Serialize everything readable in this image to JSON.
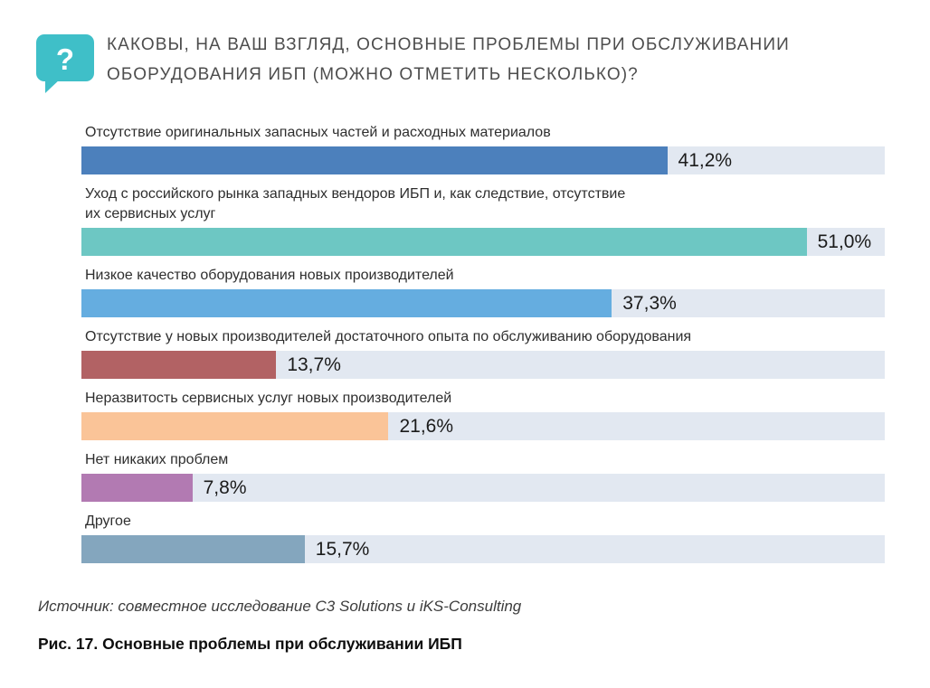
{
  "icon": {
    "name": "question-bubble",
    "glyph": "?",
    "color": "#3fbfc8"
  },
  "title": {
    "line1": "КАКОВЫ, НА ВАШ ВЗГЛЯД, ОСНОВНЫЕ ПРОБЛЕМЫ ПРИ ОБСЛУЖИВАНИИ",
    "line2": "ОБОРУДОВАНИЯ ИБП (МОЖНО ОТМЕТИТЬ НЕСКОЛЬКО)?"
  },
  "chart_data": {
    "type": "bar",
    "orientation": "horizontal",
    "title": "КАКОВЫ, НА ВАШ ВЗГЛЯД, ОСНОВНЫЕ ПРОБЛЕМЫ ПРИ ОБСЛУЖИВАНИИ ОБОРУДОВАНИЯ ИБП (МОЖНО ОТМЕТИТЬ НЕСКОЛЬКО)?",
    "categories": [
      "Отсутствие оригинальных запасных частей и расходных материалов",
      "Уход с российского рынка западных вендоров ИБП и, как следствие, отсутствие их сервисных услуг",
      "Низкое качество оборудования новых производителей",
      "Отсутствие у новых производителей достаточного опыта по обслуживанию оборудования",
      "Неразвитость сервисных услуг новых производителей",
      "Нет никаких проблем",
      "Другое"
    ],
    "category_lines": [
      [
        "Отсутствие оригинальных запасных частей и расходных материалов"
      ],
      [
        "Уход с российского рынка западных вендоров ИБП и, как следствие, отсутствие",
        "их сервисных услуг"
      ],
      [
        "Низкое качество оборудования новых производителей"
      ],
      [
        "Отсутствие у новых производителей достаточного опыта по обслуживанию оборудования"
      ],
      [
        "Неразвитость сервисных услуг новых производителей"
      ],
      [
        "Нет никаких проблем"
      ],
      [
        "Другое"
      ]
    ],
    "values": [
      41.2,
      51.0,
      37.3,
      13.7,
      21.6,
      7.8,
      15.7
    ],
    "value_labels": [
      "41,2%",
      "51,0%",
      "37,3%",
      "13,7%",
      "21,6%",
      "7,8%",
      "15,7%"
    ],
    "bar_colors": [
      "#4c80bc",
      "#6dc7c3",
      "#65ade0",
      "#b26264",
      "#fac498",
      "#b27ab2",
      "#84a6be"
    ],
    "track_color": "#e2e8f1",
    "axis_max": 56.5,
    "xlabel": "",
    "ylabel": "",
    "grid": false,
    "legend": false
  },
  "source": "Источник: совместное исследование C3 Solutions и iKS-Consulting",
  "caption": "Рис. 17. Основные проблемы при обслуживании ИБП"
}
